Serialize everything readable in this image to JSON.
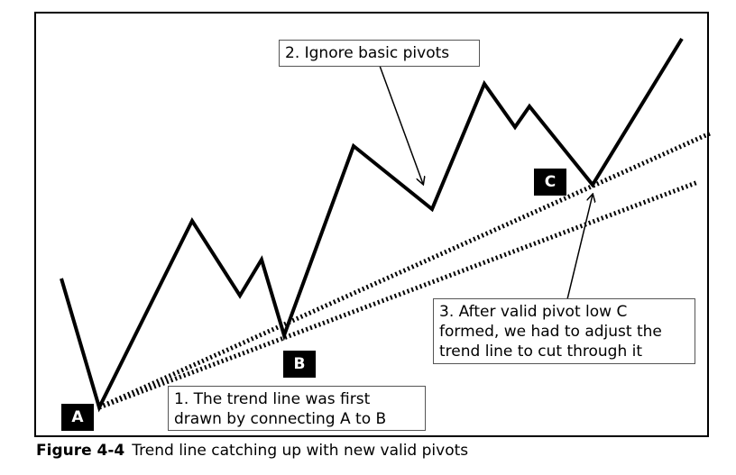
{
  "callouts": {
    "ignore": "2. Ignore basic pivots",
    "first_drawn": "1. The trend line was first\ndrawn by connecting A to B",
    "adjust": "3. After valid pivot low C\nformed, we had to adjust the\ntrend line to cut through it"
  },
  "pivots": {
    "a": "A",
    "b": "B",
    "c": "C"
  },
  "caption": {
    "figure": "Figure 4-4",
    "text": "Trend line catching up with new valid pivots"
  }
}
